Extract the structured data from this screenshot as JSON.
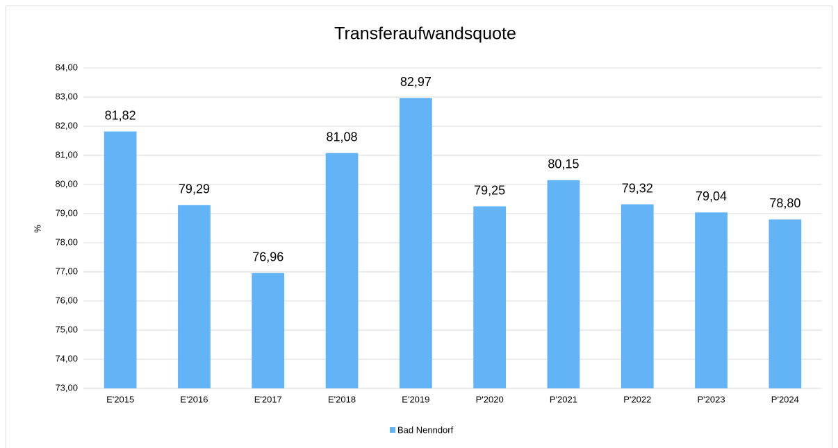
{
  "chart_data": {
    "type": "bar",
    "title": "Transferaufwandsquote",
    "y_label": "%",
    "categories": [
      "E'2015",
      "E'2016",
      "E'2017",
      "E'2018",
      "E'2019",
      "P'2020",
      "P'2021",
      "P'2022",
      "P'2023",
      "P'2024"
    ],
    "series": [
      {
        "name": "Bad Nenndorf",
        "color": "#63b4f6",
        "values": [
          81.82,
          79.29,
          76.96,
          81.08,
          82.97,
          79.25,
          80.15,
          79.32,
          79.04,
          78.8
        ],
        "value_labels": [
          "81,82",
          "79,29",
          "76,96",
          "81,08",
          "82,97",
          "79,25",
          "80,15",
          "79,32",
          "79,04",
          "78,80"
        ]
      }
    ],
    "ylim": [
      73,
      84
    ],
    "yticks": [
      {
        "value": 73,
        "label": "73,00"
      },
      {
        "value": 74,
        "label": "74,00"
      },
      {
        "value": 75,
        "label": "75,00"
      },
      {
        "value": 76,
        "label": "76,00"
      },
      {
        "value": 77,
        "label": "77,00"
      },
      {
        "value": 78,
        "label": "78,00"
      },
      {
        "value": 79,
        "label": "79,00"
      },
      {
        "value": 80,
        "label": "80,00"
      },
      {
        "value": 81,
        "label": "81,00"
      },
      {
        "value": 82,
        "label": "82,00"
      },
      {
        "value": 83,
        "label": "83,00"
      },
      {
        "value": 84,
        "label": "84,00"
      }
    ],
    "grid": true,
    "legend": "bottom"
  }
}
